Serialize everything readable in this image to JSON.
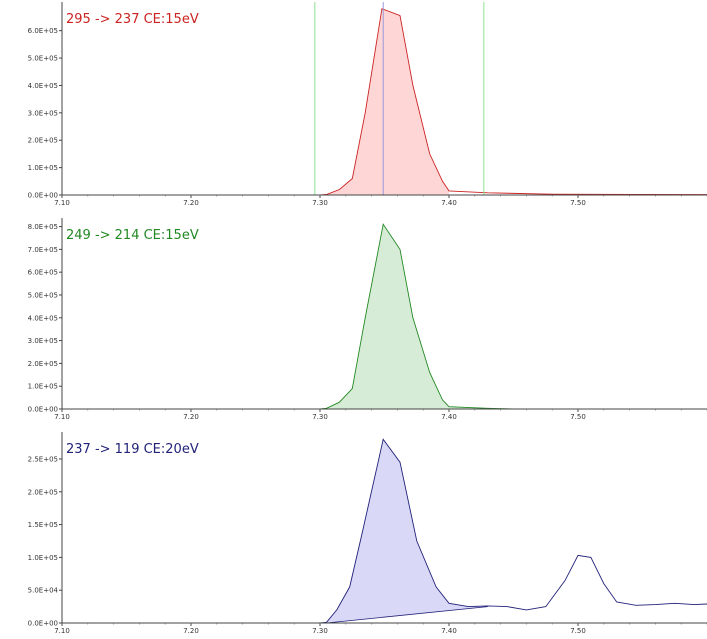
{
  "chart_data": [
    {
      "type": "area",
      "title": "295 -> 237 CE:15eV",
      "color": "#cc2222",
      "fill": "#ffd6d6",
      "xlim": [
        7.1,
        7.6
      ],
      "ylim": [
        0,
        690000
      ],
      "x_ticks": [
        "7.10",
        "7.20",
        "7.30",
        "7.40",
        "7.50"
      ],
      "y_ticks": [
        "0.0E+00",
        "1.0E+05",
        "2.0E+05",
        "3.0E+05",
        "4.0E+05",
        "5.0E+05",
        "6.0E+05"
      ],
      "markers": [
        {
          "x": 7.296,
          "color": "#90e090"
        },
        {
          "x": 7.349,
          "color": "#9999dd"
        },
        {
          "x": 7.427,
          "color": "#90e090"
        }
      ],
      "series": [
        {
          "x": [
            7.1,
            7.3,
            7.305,
            7.315,
            7.325,
            7.335,
            7.348,
            7.362,
            7.372,
            7.385,
            7.395,
            7.4,
            7.43,
            7.48,
            7.55,
            7.6
          ],
          "y": [
            0,
            0,
            2000,
            20000,
            60000,
            300000,
            680000,
            655000,
            400000,
            150000,
            50000,
            15000,
            8000,
            3000,
            2000,
            1500
          ]
        }
      ],
      "baseline": {
        "x": [
          7.3,
          7.4
        ],
        "y": [
          0,
          0
        ]
      }
    },
    {
      "type": "area",
      "title": "249 -> 214 CE:15eV",
      "color": "#228822",
      "fill": "#d7ecd7",
      "xlim": [
        7.1,
        7.6
      ],
      "ylim": [
        0,
        820000
      ],
      "x_ticks": [
        "7.10",
        "7.20",
        "7.30",
        "7.40",
        "7.50"
      ],
      "y_ticks": [
        "0.0E+00",
        "1.0E+05",
        "2.0E+05",
        "3.0E+05",
        "4.0E+05",
        "5.0E+05",
        "6.0E+05",
        "7.0E+05",
        "8.0E+05"
      ],
      "markers": [],
      "series": [
        {
          "x": [
            7.1,
            7.3,
            7.305,
            7.315,
            7.325,
            7.335,
            7.349,
            7.362,
            7.372,
            7.385,
            7.395,
            7.4,
            7.43,
            7.45,
            7.6
          ],
          "y": [
            0,
            0,
            3000,
            30000,
            90000,
            400000,
            810000,
            700000,
            400000,
            160000,
            40000,
            10000,
            3000,
            0,
            0
          ]
        }
      ],
      "baseline": {
        "x": [
          7.305,
          7.45
        ],
        "y": [
          0,
          0
        ]
      }
    },
    {
      "type": "area",
      "title": "237 -> 119 CE:20eV",
      "color": "#22227a",
      "fill": "#d9d9f7",
      "xlim": [
        7.1,
        7.6
      ],
      "ylim": [
        0,
        285000
      ],
      "x_ticks": [
        "7.10",
        "7.20",
        "7.30",
        "7.40",
        "7.50"
      ],
      "y_ticks": [
        "0.0E+00",
        "5.0E+04",
        "1.0E+05",
        "1.5E+05",
        "2.0E+05",
        "2.5E+05"
      ],
      "markers": [],
      "series": [
        {
          "x": [
            7.1,
            7.3,
            7.305,
            7.313,
            7.323,
            7.333,
            7.349,
            7.362,
            7.375,
            7.39,
            7.4,
            7.415,
            7.43,
            7.445,
            7.46,
            7.475,
            7.49,
            7.5,
            7.51,
            7.52,
            7.53,
            7.545,
            7.56,
            7.575,
            7.59,
            7.6
          ],
          "y": [
            0,
            0,
            1000,
            20000,
            55000,
            140000,
            280000,
            245000,
            125000,
            55000,
            30000,
            25000,
            26000,
            25000,
            20000,
            25000,
            65000,
            103000,
            100000,
            60000,
            32000,
            27000,
            28000,
            30000,
            28000,
            29000
          ]
        }
      ],
      "baseline": {
        "x": [
          7.305,
          7.43
        ],
        "y": [
          0,
          25000
        ]
      }
    }
  ]
}
